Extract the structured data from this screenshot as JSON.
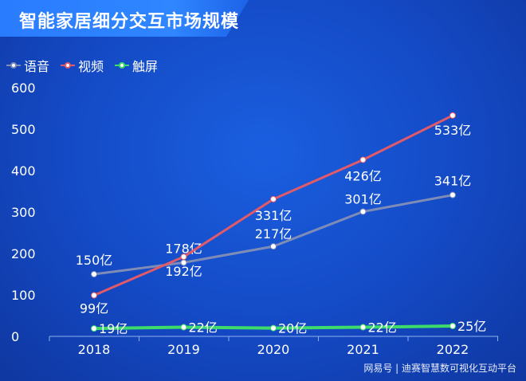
{
  "header": {
    "title": "智能家居细分交互市场规模"
  },
  "watermark": "网易号 | 迪赛智慧数可视化互动平台",
  "chart_data": {
    "type": "line",
    "title": "智能家居细分交互市场规模",
    "categories": [
      "2018",
      "2019",
      "2020",
      "2021",
      "2022"
    ],
    "ylim": [
      0,
      600
    ],
    "yticks": [
      0,
      100,
      200,
      300,
      400,
      500,
      600
    ],
    "grid": false,
    "legend_position": "top-left",
    "series": [
      {
        "name": "语音",
        "color": "#7f8cb8",
        "values": [
          150,
          178,
          217,
          301,
          341
        ],
        "labels": [
          "150亿",
          "178亿",
          "217亿",
          "301亿",
          "341亿"
        ]
      },
      {
        "name": "视频",
        "color": "#e05a6a",
        "values": [
          99,
          192,
          331,
          426,
          533
        ],
        "labels": [
          "99亿",
          "192亿",
          "331亿",
          "426亿",
          "533亿"
        ]
      },
      {
        "name": "触屏",
        "color": "#3ddc6a",
        "values": [
          19,
          22,
          20,
          22,
          25
        ],
        "labels": [
          "19亿",
          "22亿",
          "20亿",
          "22亿",
          "25亿"
        ]
      }
    ]
  }
}
